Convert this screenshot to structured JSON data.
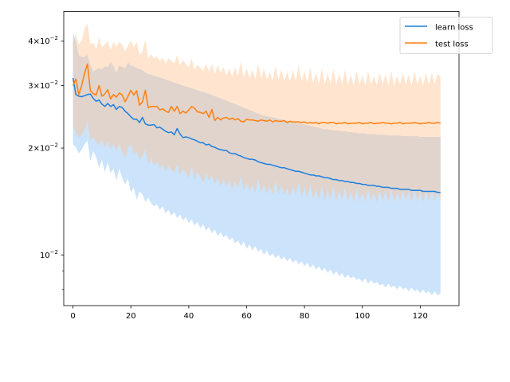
{
  "chart_data": {
    "type": "line",
    "title": "",
    "xlabel": "",
    "ylabel": "",
    "xlim": [
      -3.2,
      133.4
    ],
    "ylim": [
      0.0072,
      0.0485
    ],
    "yscale": "log",
    "grid": false,
    "legend_position": "top-right",
    "x_ticks": [
      {
        "value": 0,
        "label": "0"
      },
      {
        "value": 20,
        "label": "20"
      },
      {
        "value": 40,
        "label": "40"
      },
      {
        "value": 60,
        "label": "60"
      },
      {
        "value": 80,
        "label": "80"
      },
      {
        "value": 100,
        "label": "100"
      },
      {
        "value": 120,
        "label": "120"
      }
    ],
    "y_ticks": [
      {
        "value": 0.01,
        "base": "10",
        "exp": "−2"
      },
      {
        "value": 0.02,
        "mant": "2",
        "base": "10",
        "exp": "−2"
      },
      {
        "value": 0.03,
        "mant": "3",
        "base": "10",
        "exp": "−2"
      },
      {
        "value": 0.04,
        "mant": "4",
        "base": "10",
        "exp": "−2"
      }
    ],
    "y_minor_ticks": [
      0.008,
      0.009,
      0.05,
      0.06,
      0.07
    ],
    "times_symbol": "×",
    "x": [
      0,
      1,
      2,
      3,
      4,
      5,
      6,
      7,
      8,
      9,
      10,
      11,
      12,
      13,
      14,
      15,
      16,
      17,
      18,
      19,
      20,
      21,
      22,
      23,
      24,
      25,
      26,
      27,
      28,
      29,
      30,
      31,
      32,
      33,
      34,
      35,
      36,
      37,
      38,
      39,
      40,
      41,
      42,
      43,
      44,
      45,
      46,
      47,
      48,
      49,
      50,
      51,
      52,
      53,
      54,
      55,
      56,
      57,
      58,
      59,
      60,
      61,
      62,
      63,
      64,
      65,
      66,
      67,
      68,
      69,
      70,
      71,
      72,
      73,
      74,
      75,
      76,
      77,
      78,
      79,
      80,
      81,
      82,
      83,
      84,
      85,
      86,
      87,
      88,
      89,
      90,
      91,
      92,
      93,
      94,
      95,
      96,
      97,
      98,
      99,
      100,
      101,
      102,
      103,
      104,
      105,
      106,
      107,
      108,
      109,
      110,
      111,
      112,
      113,
      114,
      115,
      116,
      117,
      118,
      119,
      120,
      121,
      122,
      123,
      124,
      125,
      126,
      127
    ],
    "series": [
      {
        "name": "learn loss",
        "color": "#1c7fe0",
        "band_color": "#7db9f5",
        "values": [
          0.0315,
          0.0283,
          0.028,
          0.0279,
          0.0281,
          0.0283,
          0.0284,
          0.0276,
          0.0271,
          0.0273,
          0.0266,
          0.0262,
          0.0267,
          0.0262,
          0.0265,
          0.0257,
          0.0262,
          0.026,
          0.0254,
          0.025,
          0.0245,
          0.0241,
          0.0241,
          0.0236,
          0.0244,
          0.0234,
          0.0232,
          0.0232,
          0.0233,
          0.0228,
          0.0229,
          0.0226,
          0.0223,
          0.0221,
          0.0222,
          0.0218,
          0.0227,
          0.0219,
          0.0214,
          0.0215,
          0.0214,
          0.0212,
          0.0211,
          0.0209,
          0.0207,
          0.0207,
          0.0204,
          0.0205,
          0.0202,
          0.0201,
          0.0199,
          0.0198,
          0.0197,
          0.0197,
          0.0194,
          0.0193,
          0.0193,
          0.0191,
          0.019,
          0.0188,
          0.0187,
          0.0186,
          0.0186,
          0.0185,
          0.0183,
          0.0182,
          0.0181,
          0.018,
          0.018,
          0.0179,
          0.0178,
          0.0177,
          0.0176,
          0.0176,
          0.0175,
          0.0174,
          0.0173,
          0.0172,
          0.0172,
          0.0171,
          0.017,
          0.0169,
          0.0168,
          0.0168,
          0.0167,
          0.0167,
          0.0166,
          0.0165,
          0.0165,
          0.0164,
          0.0163,
          0.0163,
          0.0162,
          0.0162,
          0.0161,
          0.0161,
          0.016,
          0.016,
          0.0159,
          0.0159,
          0.0158,
          0.0158,
          0.0157,
          0.0157,
          0.0157,
          0.0156,
          0.0156,
          0.0155,
          0.0155,
          0.0155,
          0.0154,
          0.0154,
          0.0154,
          0.0153,
          0.0153,
          0.0153,
          0.0153,
          0.0152,
          0.0152,
          0.0152,
          0.0152,
          0.0151,
          0.0151,
          0.0151,
          0.0151,
          0.0151,
          0.015,
          0.015
        ],
        "lower": [
          0.0205,
          0.0201,
          0.0193,
          0.0198,
          0.0205,
          0.021,
          0.0184,
          0.0196,
          0.0189,
          0.0176,
          0.0185,
          0.0171,
          0.0182,
          0.017,
          0.0175,
          0.0162,
          0.0175,
          0.0165,
          0.0158,
          0.0164,
          0.015,
          0.0155,
          0.0143,
          0.0151,
          0.0148,
          0.0141,
          0.0145,
          0.014,
          0.0137,
          0.0139,
          0.0134,
          0.0137,
          0.0131,
          0.0134,
          0.0129,
          0.0132,
          0.0127,
          0.013,
          0.0125,
          0.0128,
          0.0123,
          0.0126,
          0.0121,
          0.0124,
          0.0119,
          0.0122,
          0.0117,
          0.012,
          0.0115,
          0.0118,
          0.0113,
          0.0116,
          0.0112,
          0.0114,
          0.011,
          0.0112,
          0.0108,
          0.011,
          0.0106,
          0.0109,
          0.0104,
          0.0107,
          0.0103,
          0.0106,
          0.0102,
          0.0104,
          0.01,
          0.0103,
          0.0099,
          0.0101,
          0.0098,
          0.01,
          0.0097,
          0.0099,
          0.0096,
          0.0098,
          0.0095,
          0.0097,
          0.0094,
          0.0096,
          0.0093,
          0.0095,
          0.0092,
          0.0094,
          0.0091,
          0.0093,
          0.009,
          0.0092,
          0.0089,
          0.0091,
          0.0088,
          0.009,
          0.0087,
          0.0089,
          0.0086,
          0.0088,
          0.0086,
          0.0087,
          0.0085,
          0.0086,
          0.0084,
          0.0086,
          0.0083,
          0.0085,
          0.0083,
          0.0084,
          0.0082,
          0.0083,
          0.0081,
          0.0083,
          0.0081,
          0.0082,
          0.008,
          0.0082,
          0.008,
          0.0081,
          0.0079,
          0.0081,
          0.0079,
          0.008,
          0.0078,
          0.008,
          0.0078,
          0.0079,
          0.0077,
          0.0079,
          0.0077,
          0.0078
        ],
        "upper": [
          0.0425,
          0.0398,
          0.0365,
          0.0361,
          0.0361,
          0.0366,
          0.0343,
          0.0327,
          0.0333,
          0.0336,
          0.0333,
          0.034,
          0.0338,
          0.035,
          0.034,
          0.0326,
          0.0342,
          0.0338,
          0.0336,
          0.0348,
          0.0342,
          0.034,
          0.0336,
          0.0334,
          0.0331,
          0.0327,
          0.0323,
          0.0322,
          0.032,
          0.0318,
          0.0316,
          0.0314,
          0.0312,
          0.031,
          0.0308,
          0.0306,
          0.0304,
          0.0302,
          0.03,
          0.0298,
          0.0297,
          0.0295,
          0.0293,
          0.0291,
          0.0289,
          0.0288,
          0.0286,
          0.0284,
          0.0282,
          0.028,
          0.0278,
          0.0276,
          0.0274,
          0.0272,
          0.027,
          0.0268,
          0.0266,
          0.0264,
          0.0262,
          0.026,
          0.0258,
          0.0256,
          0.0254,
          0.0252,
          0.025,
          0.0248,
          0.0247,
          0.0246,
          0.0245,
          0.0244,
          0.0243,
          0.0242,
          0.0241,
          0.024,
          0.0239,
          0.0238,
          0.0237,
          0.0236,
          0.0235,
          0.0234,
          0.0233,
          0.0232,
          0.0231,
          0.023,
          0.0229,
          0.0228,
          0.0227,
          0.0226,
          0.0226,
          0.0225,
          0.0225,
          0.0224,
          0.0224,
          0.0223,
          0.0223,
          0.0222,
          0.0222,
          0.0221,
          0.0221,
          0.022,
          0.022,
          0.022,
          0.0219,
          0.0219,
          0.0219,
          0.0218,
          0.0218,
          0.0218,
          0.0218,
          0.0217,
          0.0217,
          0.0217,
          0.0217,
          0.0217,
          0.0216,
          0.0216,
          0.0216,
          0.0216,
          0.0216,
          0.0216,
          0.0215,
          0.0215,
          0.0215,
          0.0215,
          0.0215,
          0.0215,
          0.0215,
          0.0215
        ]
      },
      {
        "name": "test loss",
        "color": "#ff7f0e",
        "band_color": "#ffbf86",
        "values": [
          0.03,
          0.0313,
          0.0283,
          0.03,
          0.0325,
          0.0345,
          0.029,
          0.0285,
          0.0282,
          0.03,
          0.028,
          0.0284,
          0.0292,
          0.0275,
          0.0283,
          0.0278,
          0.0286,
          0.0282,
          0.027,
          0.028,
          0.0291,
          0.0282,
          0.029,
          0.0264,
          0.027,
          0.0291,
          0.026,
          0.0262,
          0.0262,
          0.0262,
          0.0256,
          0.0258,
          0.0254,
          0.0252,
          0.0262,
          0.0254,
          0.0262,
          0.025,
          0.0254,
          0.0251,
          0.0256,
          0.0262,
          0.0259,
          0.0253,
          0.0252,
          0.025,
          0.0254,
          0.0244,
          0.0257,
          0.0239,
          0.0244,
          0.024,
          0.0243,
          0.0244,
          0.0241,
          0.0243,
          0.024,
          0.0242,
          0.0238,
          0.0237,
          0.0241,
          0.024,
          0.024,
          0.0239,
          0.0238,
          0.024,
          0.0239,
          0.0238,
          0.024,
          0.0237,
          0.0239,
          0.0238,
          0.0238,
          0.0239,
          0.0236,
          0.0238,
          0.0237,
          0.0237,
          0.0237,
          0.0236,
          0.0237,
          0.0235,
          0.0236,
          0.0235,
          0.0236,
          0.0234,
          0.0236,
          0.0236,
          0.0235,
          0.0236,
          0.0236,
          0.0234,
          0.0235,
          0.0235,
          0.0236,
          0.0234,
          0.0235,
          0.0235,
          0.0235,
          0.0236,
          0.0234,
          0.0235,
          0.0235,
          0.0236,
          0.0234,
          0.0235,
          0.0235,
          0.0236,
          0.0235,
          0.0235,
          0.0234,
          0.0235,
          0.0235,
          0.0236,
          0.0234,
          0.0235,
          0.0235,
          0.0235,
          0.0236,
          0.0235,
          0.0234,
          0.0235,
          0.0235,
          0.0236,
          0.0235,
          0.0235,
          0.0236,
          0.0235
        ],
        "lower": [
          0.023,
          0.0222,
          0.0214,
          0.0218,
          0.0224,
          0.0238,
          0.021,
          0.0214,
          0.0208,
          0.0204,
          0.0212,
          0.02,
          0.021,
          0.0198,
          0.0205,
          0.0196,
          0.0206,
          0.0194,
          0.0188,
          0.02,
          0.0205,
          0.0192,
          0.0196,
          0.0186,
          0.019,
          0.0198,
          0.018,
          0.0188,
          0.0178,
          0.0183,
          0.0176,
          0.018,
          0.0172,
          0.0178,
          0.0174,
          0.017,
          0.018,
          0.0168,
          0.0175,
          0.017,
          0.0165,
          0.0178,
          0.0163,
          0.0172,
          0.0166,
          0.016,
          0.017,
          0.0162,
          0.0168,
          0.0158,
          0.0165,
          0.0156,
          0.0164,
          0.0155,
          0.0163,
          0.0153,
          0.0161,
          0.0154,
          0.0166,
          0.0152,
          0.016,
          0.0151,
          0.0158,
          0.015,
          0.0164,
          0.015,
          0.0158,
          0.0149,
          0.0156,
          0.0148,
          0.0162,
          0.0149,
          0.0157,
          0.0147,
          0.0155,
          0.0146,
          0.0156,
          0.0147,
          0.0161,
          0.0146,
          0.0155,
          0.0145,
          0.0158,
          0.0144,
          0.0153,
          0.0143,
          0.0157,
          0.0142,
          0.0153,
          0.0143,
          0.0156,
          0.0142,
          0.0152,
          0.0143,
          0.0155,
          0.0142,
          0.0151,
          0.0141,
          0.0154,
          0.0142,
          0.015,
          0.0141,
          0.0153,
          0.0142,
          0.015,
          0.0141,
          0.0152,
          0.0142,
          0.0151,
          0.0141,
          0.0153,
          0.0141,
          0.015,
          0.0142,
          0.0152,
          0.0142,
          0.0151,
          0.0141,
          0.0153,
          0.0142,
          0.015,
          0.0141,
          0.0152,
          0.0142,
          0.0152,
          0.0142,
          0.0151,
          0.0142
        ],
        "upper": [
          0.0396,
          0.042,
          0.0392,
          0.0402,
          0.0434,
          0.0448,
          0.0392,
          0.0396,
          0.038,
          0.0412,
          0.0384,
          0.0392,
          0.04,
          0.0378,
          0.0398,
          0.0385,
          0.0398,
          0.0392,
          0.0375,
          0.0388,
          0.0402,
          0.0385,
          0.0398,
          0.0366,
          0.0374,
          0.0405,
          0.0358,
          0.0368,
          0.0358,
          0.0362,
          0.0352,
          0.036,
          0.0346,
          0.0358,
          0.0352,
          0.0346,
          0.0366,
          0.0342,
          0.0354,
          0.0345,
          0.0338,
          0.0358,
          0.0332,
          0.0344,
          0.0336,
          0.033,
          0.0346,
          0.0328,
          0.0345,
          0.0322,
          0.0342,
          0.0326,
          0.0338,
          0.032,
          0.0335,
          0.0318,
          0.0338,
          0.032,
          0.035,
          0.0316,
          0.0336,
          0.0315,
          0.0332,
          0.0313,
          0.0346,
          0.0314,
          0.0334,
          0.0312,
          0.0328,
          0.031,
          0.034,
          0.0312,
          0.0332,
          0.0309,
          0.0328,
          0.0308,
          0.0333,
          0.0309,
          0.0344,
          0.0308,
          0.033,
          0.0306,
          0.0338,
          0.0305,
          0.0326,
          0.0303,
          0.0336,
          0.0302,
          0.0326,
          0.0304,
          0.0334,
          0.0302,
          0.0324,
          0.0304,
          0.0332,
          0.0302,
          0.0322,
          0.03,
          0.033,
          0.0302,
          0.032,
          0.03,
          0.0329,
          0.0302,
          0.032,
          0.03,
          0.0326,
          0.0302,
          0.0322,
          0.03,
          0.033,
          0.03,
          0.032,
          0.0302,
          0.0326,
          0.0302,
          0.0322,
          0.03,
          0.033,
          0.0302,
          0.032,
          0.03,
          0.0326,
          0.0302,
          0.0326,
          0.0302,
          0.0324,
          0.0318
        ]
      }
    ]
  }
}
